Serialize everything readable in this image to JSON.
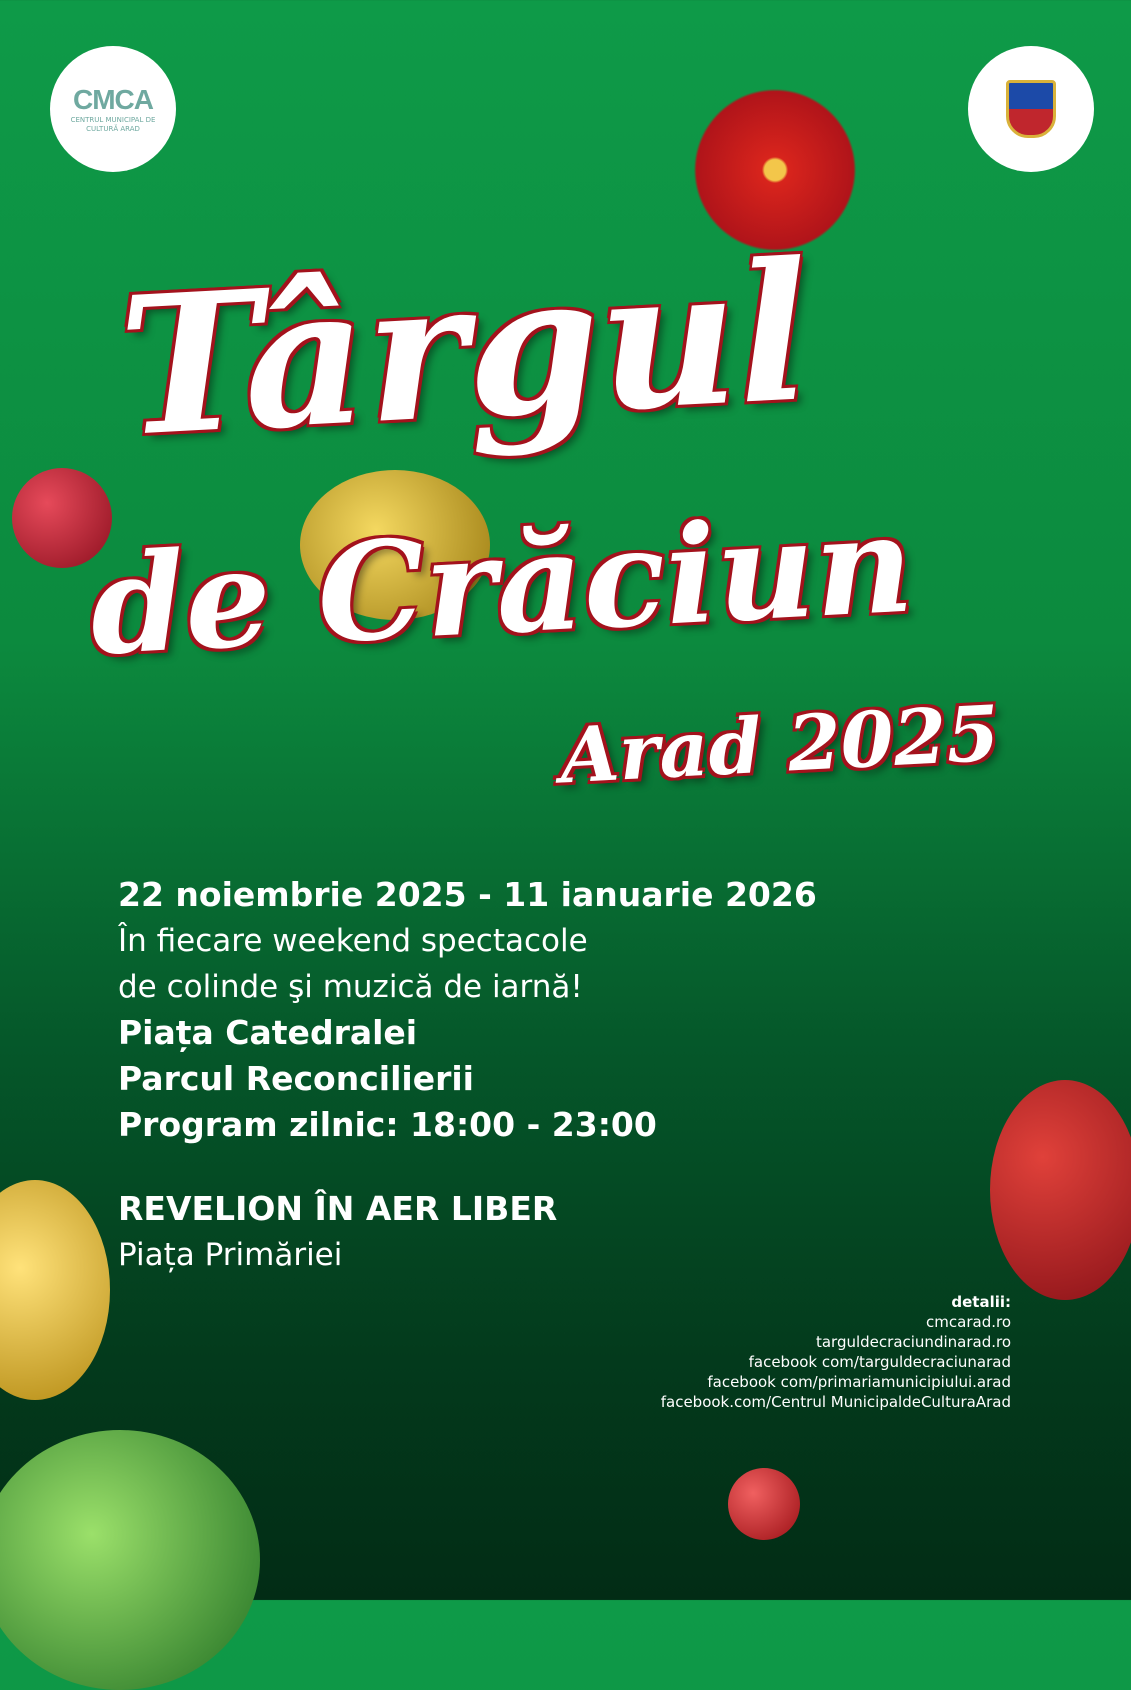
{
  "logos": {
    "left_text": "CMCA",
    "left_subtitle": "CENTRUL MUNICIPAL DE CULTURĂ ARAD"
  },
  "title": {
    "line1": "Târgul",
    "line2": "de Crăciun",
    "line3": "Arad 2025"
  },
  "info": {
    "dates": "22 noiembrie 2025 - 11 ianuarie 2026",
    "desc1": "În fiecare weekend spectacole",
    "desc2": "de colinde şi muzică de iarnă!",
    "loc1": "Piața Catedralei",
    "loc2": "Parcul Reconcilierii",
    "schedule": "Program zilnic: 18:00 - 23:00",
    "event": "REVELION ÎN AER LIBER",
    "event_loc": "Piața Primăriei"
  },
  "details": {
    "heading": "detalii:",
    "links": [
      "cmcarad.ro",
      "targuldecraciundinarad.ro",
      "facebook com/targuldecraciunarad",
      "facebook com/primariamunicipiului.arad",
      "facebook.com/Centrul MunicipaldeCulturaArad"
    ]
  },
  "colors": {
    "accent_red": "#a3121c",
    "green": "#0e9a48",
    "gold": "#d9b23a"
  }
}
